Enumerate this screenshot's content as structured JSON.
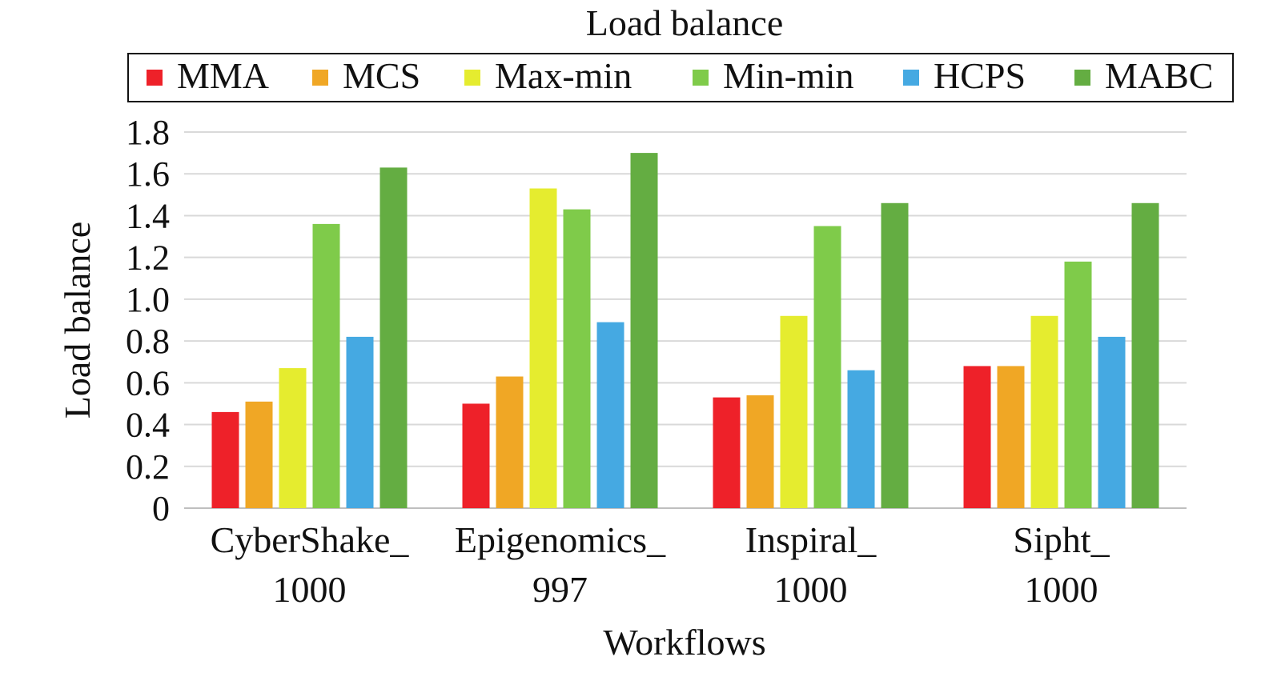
{
  "chart_data": {
    "type": "bar",
    "title": "Load balance",
    "xlabel": "Workflows",
    "ylabel": "Load balance",
    "ylim": [
      0,
      1.8
    ],
    "yticks": [
      "0",
      "0.2",
      "0.4",
      "0.6",
      "0.8",
      "1.0",
      "1.2",
      "1.4",
      "1.6",
      "1.8"
    ],
    "grid": true,
    "legend_position": "top",
    "categories": [
      {
        "line1": "CyberShake_",
        "line2": "1000"
      },
      {
        "line1": "Epigenomics_",
        "line2": "997"
      },
      {
        "line1": "Inspiral_",
        "line2": "1000"
      },
      {
        "line1": "Sipht_",
        "line2": "1000"
      }
    ],
    "series": [
      {
        "name": "MMA",
        "color": "#ee2129",
        "values": [
          0.46,
          0.5,
          0.53,
          0.68
        ]
      },
      {
        "name": "MCS",
        "color": "#f0a725",
        "values": [
          0.51,
          0.63,
          0.54,
          0.68
        ]
      },
      {
        "name": "Max-min",
        "color": "#e5ec2f",
        "values": [
          0.67,
          1.53,
          0.92,
          0.92
        ]
      },
      {
        "name": "Min-min",
        "color": "#7fcb4a",
        "values": [
          1.36,
          1.43,
          1.35,
          1.18
        ]
      },
      {
        "name": "HCPS",
        "color": "#45a9e2",
        "values": [
          0.82,
          0.89,
          0.66,
          0.82
        ]
      },
      {
        "name": "MABC",
        "color": "#64ad42",
        "values": [
          1.63,
          1.7,
          1.46,
          1.46
        ]
      }
    ]
  }
}
